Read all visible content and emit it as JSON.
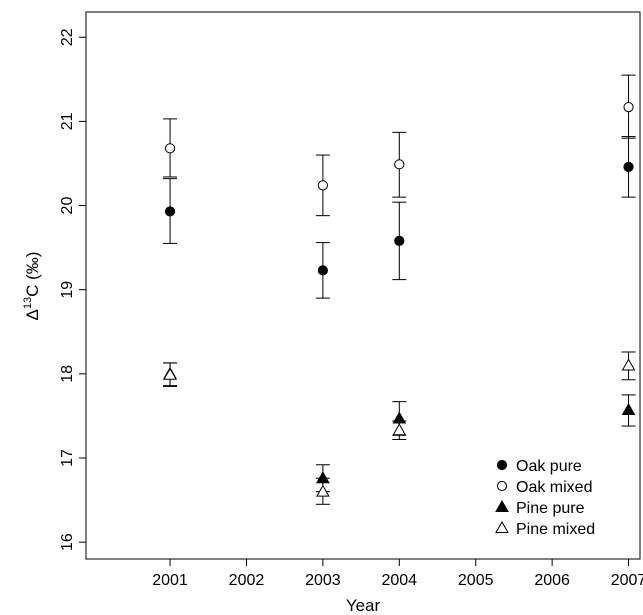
{
  "chart_data": {
    "type": "scatter",
    "xlabel": "Year",
    "ylabel_base": "Δ",
    "ylabel_sup": "13",
    "ylabel_rest": "C (‰)",
    "xlim": [
      1999.9,
      2007.15
    ],
    "ylim": [
      15.8,
      22.3
    ],
    "x_ticks": [
      2001,
      2002,
      2003,
      2004,
      2005,
      2006,
      2007
    ],
    "y_ticks": [
      16,
      17,
      18,
      19,
      20,
      21,
      22
    ],
    "legend_position": "bottom-right",
    "series": [
      {
        "name": "Oak pure",
        "marker": "circle-filled",
        "points": [
          {
            "x": 2001,
            "y": 19.93,
            "lo": 19.55,
            "hi": 20.32
          },
          {
            "x": 2003,
            "y": 19.23,
            "lo": 18.9,
            "hi": 19.56
          },
          {
            "x": 2004,
            "y": 19.58,
            "lo": 19.12,
            "hi": 20.04
          },
          {
            "x": 2007,
            "y": 20.46,
            "lo": 20.1,
            "hi": 20.82
          }
        ]
      },
      {
        "name": "Oak mixed",
        "marker": "circle-open",
        "points": [
          {
            "x": 2001,
            "y": 20.68,
            "lo": 20.34,
            "hi": 21.03
          },
          {
            "x": 2003,
            "y": 20.24,
            "lo": 19.88,
            "hi": 20.6
          },
          {
            "x": 2004,
            "y": 20.49,
            "lo": 20.1,
            "hi": 20.87
          },
          {
            "x": 2007,
            "y": 21.17,
            "lo": 20.8,
            "hi": 21.55
          }
        ]
      },
      {
        "name": "Pine pure",
        "marker": "triangle-filled",
        "points": [
          {
            "x": 2001,
            "y": 18.0,
            "lo": 17.86,
            "hi": 18.13
          },
          {
            "x": 2003,
            "y": 16.76,
            "lo": 16.6,
            "hi": 16.92
          },
          {
            "x": 2004,
            "y": 17.47,
            "lo": 17.27,
            "hi": 17.67
          },
          {
            "x": 2007,
            "y": 17.57,
            "lo": 17.38,
            "hi": 17.75
          }
        ]
      },
      {
        "name": "Pine mixed",
        "marker": "triangle-open",
        "points": [
          {
            "x": 2001,
            "y": 17.99,
            "lo": 17.85,
            "hi": 18.13
          },
          {
            "x": 2003,
            "y": 16.6,
            "lo": 16.45,
            "hi": 16.76
          },
          {
            "x": 2004,
            "y": 17.33,
            "lo": 17.22,
            "hi": 17.44
          },
          {
            "x": 2007,
            "y": 18.1,
            "lo": 17.93,
            "hi": 18.26
          }
        ]
      }
    ]
  }
}
